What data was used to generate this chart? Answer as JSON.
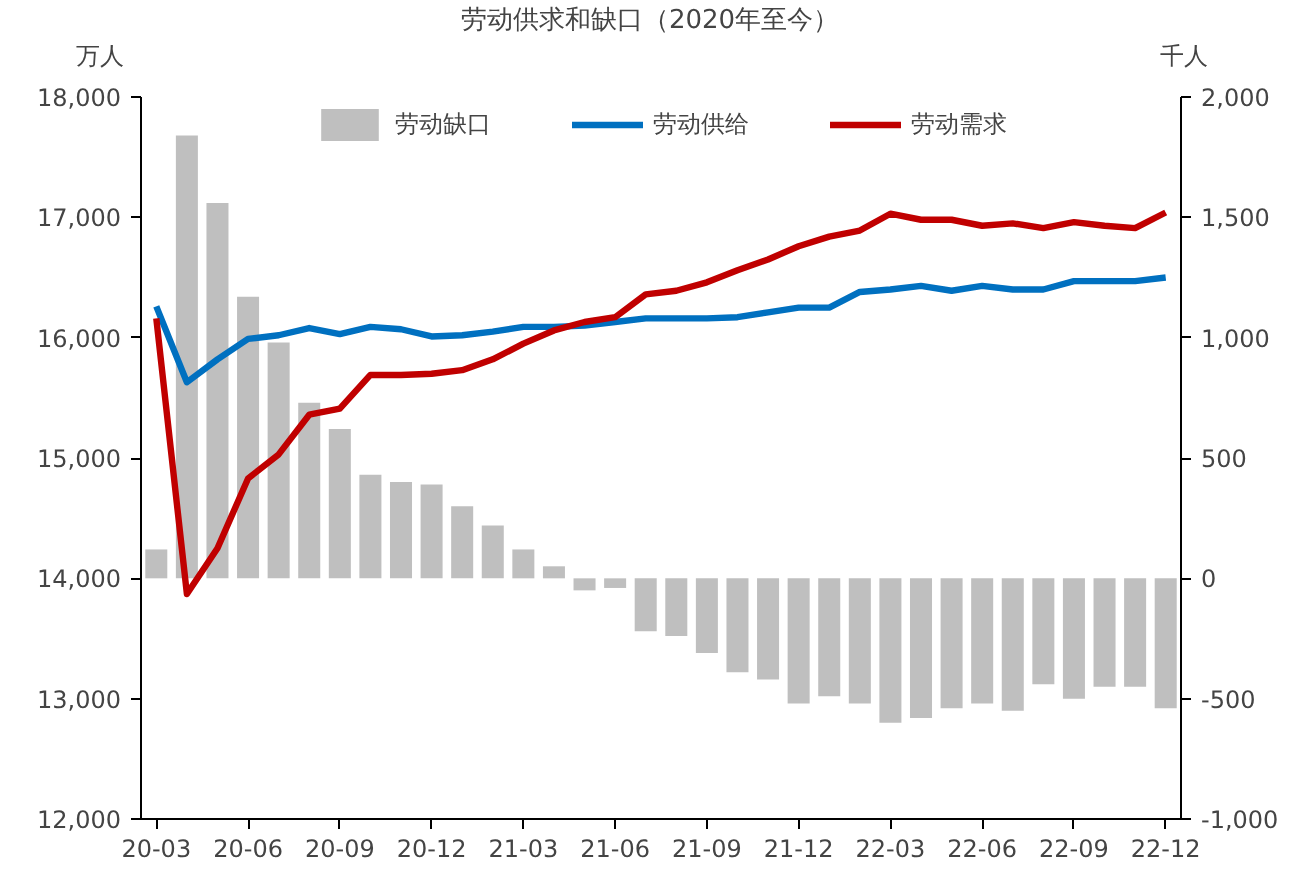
{
  "chart_data": {
    "type": "bar",
    "title": "劳动供求和缺口（2020年至今）",
    "ylabel": "万人",
    "y2label": "千人",
    "categories": [
      "20-03",
      null,
      null,
      "20-06",
      null,
      null,
      "20-09",
      null,
      null,
      "20-12",
      null,
      null,
      "21-03",
      null,
      null,
      "21-06",
      null,
      null,
      "21-09",
      null,
      null,
      "21-12",
      null,
      null,
      "22-03",
      null,
      null,
      "22-06",
      null,
      null,
      "22-09",
      null,
      null,
      "22-12"
    ],
    "series": [
      {
        "name": "劳动缺口",
        "axis": "y2",
        "color": "#bfbfbf",
        "values": [
          120,
          1840,
          1560,
          1170,
          980,
          730,
          620,
          430,
          400,
          390,
          300,
          220,
          120,
          50,
          -50,
          -40,
          -220,
          -240,
          -310,
          -390,
          -420,
          -520,
          -490,
          -520,
          -600,
          -580,
          -540,
          -520,
          -550,
          -440,
          -500,
          -450,
          -450,
          -540
        ]
      },
      {
        "name": "劳动供给",
        "type": "line",
        "color": "#0070c0",
        "values": [
          16260,
          15630,
          15820,
          15990,
          16020,
          16080,
          16030,
          16090,
          16070,
          16010,
          16020,
          16050,
          16090,
          16090,
          16100,
          16130,
          16160,
          16160,
          16160,
          16170,
          16210,
          16250,
          16250,
          16380,
          16400,
          16430,
          16390,
          16430,
          16400,
          16400,
          16470,
          16470,
          16470,
          16500
        ]
      },
      {
        "name": "劳动需求",
        "type": "line",
        "color": "#c00000",
        "values": [
          16160,
          13870,
          14250,
          14830,
          15030,
          15360,
          15410,
          15690,
          15690,
          15700,
          15730,
          15820,
          15950,
          16060,
          16130,
          16170,
          16360,
          16390,
          16460,
          16560,
          16650,
          16760,
          16840,
          16890,
          17030,
          16980,
          16980,
          16930,
          16950,
          16910,
          16960,
          16930,
          16910,
          17040
        ]
      }
    ],
    "ylim": [
      12000,
      18000
    ],
    "yticks": [
      {
        "value": 12000,
        "label": "12,000"
      },
      {
        "value": 13000,
        "label": "13,000"
      },
      {
        "value": 14000,
        "label": "14,000"
      },
      {
        "value": 15000,
        "label": "15,000"
      },
      {
        "value": 16000,
        "label": "16,000"
      },
      {
        "value": 17000,
        "label": "17,000"
      },
      {
        "value": 18000,
        "label": "18,000"
      }
    ],
    "y2lim": [
      -1000,
      2000
    ],
    "y2ticks": [
      {
        "value": -1000,
        "label": "-1,000"
      },
      {
        "value": -500,
        "label": "-500"
      },
      0,
      500,
      {
        "value": 1000,
        "label": "1,000"
      },
      {
        "value": 1500,
        "label": "1,500"
      },
      {
        "value": 2000,
        "label": "2,000"
      }
    ],
    "grid": false,
    "legend": "top",
    "line_style": "solid",
    "marker": "none"
  }
}
